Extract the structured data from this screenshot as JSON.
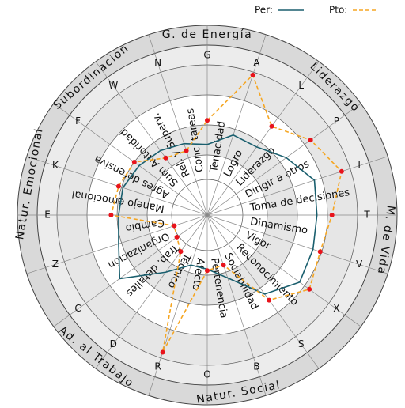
{
  "chart_data": {
    "type": "radar",
    "categories": [
      "G",
      "A",
      "L",
      "P",
      "I",
      "T",
      "V",
      "X",
      "S",
      "B",
      "O",
      "R",
      "D",
      "C",
      "Z",
      "E",
      "K",
      "F",
      "W",
      "N"
    ],
    "factors": [
      "Tenacidad",
      "Logro",
      "Liderazgo",
      "Dirigir a otros",
      "Toma de decisiones",
      "Dinamismo",
      "Vigor",
      "Reconocimiento",
      "Sociabilidad",
      "Pertenencia",
      "Afecto",
      "Técnico",
      "Trab. detalles",
      "Organización",
      "Cambio",
      "Manejo emocional",
      "Agres defensiva",
      "Sum Autoridad",
      "Rel. y Superv.",
      "Conc. tareas"
    ],
    "groups": [
      "G. de Energía",
      "Liderazgo",
      "M. de Vida",
      "Natur. Social",
      "Ad. al Trabajo",
      "Natur. Emocional",
      "Subordinación"
    ],
    "series": [
      {
        "name": "Per:",
        "color": "#1a5f6e",
        "values": [
          4.7,
          5.6,
          5.6,
          6.5,
          7.5,
          7.3,
          7.4,
          7.6,
          6.5,
          4.4,
          3.6,
          3.5,
          4.7,
          7.2,
          6.2,
          5.9,
          5.9,
          5.6,
          5.3,
          5.0
        ]
      },
      {
        "name": "Pto:",
        "color": "#f5a623",
        "values": [
          6.3,
          9.8,
          7.3,
          8.5,
          9.4,
          8.3,
          7.9,
          8.4,
          7.0,
          3.5,
          3.7,
          9.6,
          3.0,
          2.5,
          2.3,
          6.4,
          6.2,
          6.0,
          4.7,
          4.5
        ]
      }
    ],
    "ylim": [
      0,
      10
    ],
    "yticks": [
      2,
      4,
      6,
      8,
      10
    ],
    "grid": true
  }
}
